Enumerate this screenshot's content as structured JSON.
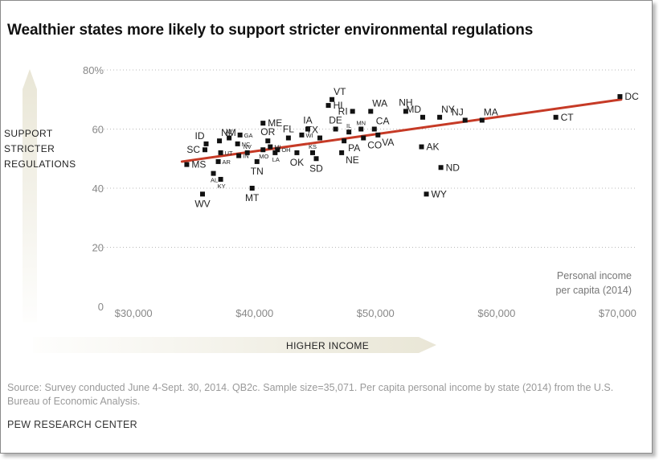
{
  "title": "Wealthier states more likely to support stricter environmental regulations",
  "y_axis_label": [
    "SUPPORT",
    "STRICTER",
    "REGULATIONS"
  ],
  "x_axis_label": "HIGHER INCOME",
  "income_note": [
    "Personal income",
    "per capita (2014)"
  ],
  "source": "Source: Survey conducted June 4-Sept. 30, 2014. QB2c. Sample size=35,071. Per capita personal income by state (2014) from the U.S. Bureau of Economic Analysis.",
  "organization": "PEW RESEARCH CENTER",
  "colors": {
    "trend": "#c63a26",
    "point": "#111111",
    "arrow": "#e9e6d6",
    "grid": "#b8b8b8"
  },
  "chart_data": {
    "type": "scatter",
    "xlim": [
      27000,
      71500
    ],
    "ylim": [
      0,
      80
    ],
    "x_ticks": [
      30000,
      40000,
      50000,
      60000,
      70000
    ],
    "x_tick_labels": [
      "$30,000",
      "$40,000",
      "$50,000",
      "$60,000",
      "$70,000"
    ],
    "y_ticks": [
      0,
      20,
      40,
      60,
      80
    ],
    "y_tick_labels": [
      "0",
      "20",
      "40",
      "60",
      "80%"
    ],
    "grid": "horizontal dotted",
    "trend_line": [
      [
        34000,
        49
      ],
      [
        70300,
        70
      ]
    ],
    "points": [
      {
        "label": "DC",
        "x": 70200,
        "y": 71,
        "lp": "r"
      },
      {
        "label": "CT",
        "x": 64900,
        "y": 64,
        "lp": "r"
      },
      {
        "label": "MA",
        "x": 58800,
        "y": 63,
        "lp": "tr"
      },
      {
        "label": "NJ",
        "x": 57400,
        "y": 63,
        "lp": "tl"
      },
      {
        "label": "NY",
        "x": 55300,
        "y": 64,
        "lp": "tr"
      },
      {
        "label": "MD",
        "x": 53900,
        "y": 64,
        "lp": "tl"
      },
      {
        "label": "NH",
        "x": 52500,
        "y": 66,
        "lp": "t"
      },
      {
        "label": "WA",
        "x": 49600,
        "y": 66,
        "lp": "tr"
      },
      {
        "label": "VT",
        "x": 46400,
        "y": 70,
        "lp": "tr"
      },
      {
        "label": "HI",
        "x": 46100,
        "y": 68,
        "lp": "r"
      },
      {
        "label": "RI",
        "x": 48100,
        "y": 66,
        "lp": "l"
      },
      {
        "label": "CA",
        "x": 49900,
        "y": 60,
        "lp": "tr"
      },
      {
        "label": "MN",
        "x": 48800,
        "y": 60,
        "lp": "ts"
      },
      {
        "label": "DE",
        "x": 46700,
        "y": 60,
        "lp": "t"
      },
      {
        "label": "IL",
        "x": 47800,
        "y": 59,
        "lp": "ts"
      },
      {
        "label": "VA",
        "x": 50200,
        "y": 58,
        "lp": "br"
      },
      {
        "label": "CO",
        "x": 49000,
        "y": 57,
        "lp": "br"
      },
      {
        "label": "PA",
        "x": 47400,
        "y": 56,
        "lp": "br"
      },
      {
        "label": "NE",
        "x": 47200,
        "y": 52,
        "lp": "br"
      },
      {
        "label": "IA",
        "x": 44400,
        "y": 60,
        "lp": "t"
      },
      {
        "label": "TX",
        "x": 45400,
        "y": 57,
        "lp": "tl"
      },
      {
        "label": "WI",
        "x": 43900,
        "y": 58,
        "lp": "rs"
      },
      {
        "label": "ND",
        "x": 55400,
        "y": 47,
        "lp": "r"
      },
      {
        "label": "AK",
        "x": 53800,
        "y": 54,
        "lp": "r"
      },
      {
        "label": "WY",
        "x": 54200,
        "y": 38,
        "lp": "r"
      },
      {
        "label": "FL",
        "x": 42800,
        "y": 57,
        "lp": "t"
      },
      {
        "label": "ME",
        "x": 40700,
        "y": 62,
        "lp": "r"
      },
      {
        "label": "OR",
        "x": 41100,
        "y": 56,
        "lp": "t"
      },
      {
        "label": "OK",
        "x": 43500,
        "y": 52,
        "lp": "b"
      },
      {
        "label": "KS",
        "x": 44800,
        "y": 52,
        "lp": "ts"
      },
      {
        "label": "SD",
        "x": 45100,
        "y": 50,
        "lp": "b"
      },
      {
        "label": "MI",
        "x": 41300,
        "y": 54,
        "lp": "rs"
      },
      {
        "label": "MO",
        "x": 40700,
        "y": 53,
        "lp": "bs"
      },
      {
        "label": "OH",
        "x": 41900,
        "y": 53,
        "lp": "rs"
      },
      {
        "label": "LA",
        "x": 41700,
        "y": 52,
        "lp": "bs"
      },
      {
        "label": "TN",
        "x": 40200,
        "y": 49,
        "lp": "b"
      },
      {
        "label": "MT",
        "x": 39800,
        "y": 40,
        "lp": "b"
      },
      {
        "label": "NV",
        "x": 39400,
        "y": 52,
        "lp": "ts"
      },
      {
        "label": "IN",
        "x": 38700,
        "y": 51,
        "lp": "rs"
      },
      {
        "label": "GA",
        "x": 38800,
        "y": 58,
        "lp": "rs"
      },
      {
        "label": "NC",
        "x": 38600,
        "y": 55,
        "lp": "rs"
      },
      {
        "label": "AZ",
        "x": 37900,
        "y": 57,
        "lp": "ts"
      },
      {
        "label": "UT",
        "x": 37200,
        "y": 52,
        "lp": "rs"
      },
      {
        "label": "AR",
        "x": 37000,
        "y": 49,
        "lp": "rs"
      },
      {
        "label": "AL",
        "x": 36600,
        "y": 45,
        "lp": "bs"
      },
      {
        "label": "KY",
        "x": 37200,
        "y": 43,
        "lp": "bs"
      },
      {
        "label": "NM",
        "x": 37100,
        "y": 56,
        "lp": "tr"
      },
      {
        "label": "ID",
        "x": 36000,
        "y": 55,
        "lp": "tl"
      },
      {
        "label": "SC",
        "x": 35900,
        "y": 53,
        "lp": "l"
      },
      {
        "label": "MS",
        "x": 34400,
        "y": 48,
        "lp": "r"
      },
      {
        "label": "WV",
        "x": 35700,
        "y": 38,
        "lp": "b"
      }
    ]
  }
}
